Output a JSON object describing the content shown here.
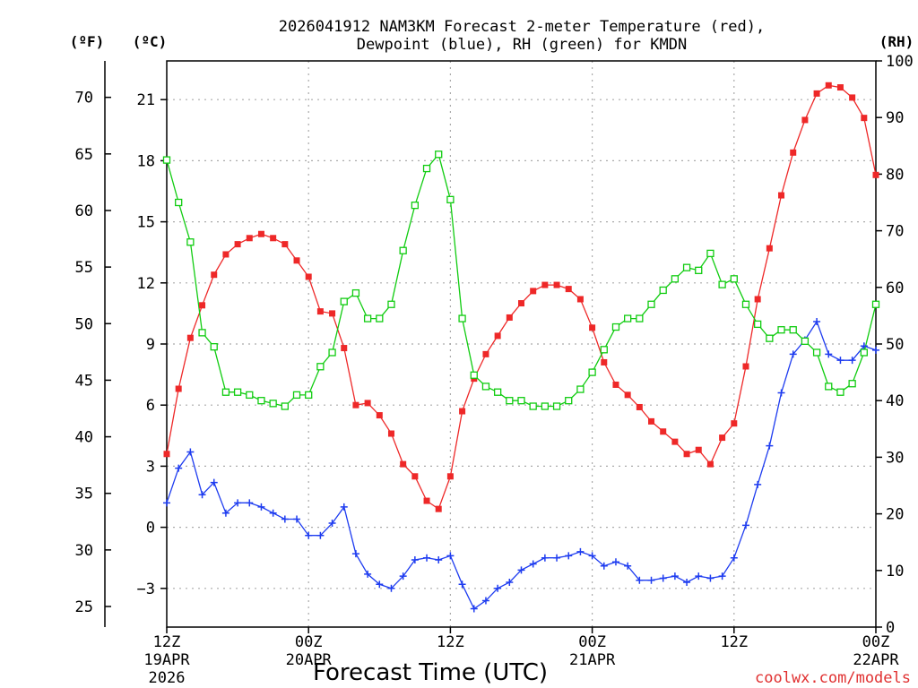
{
  "chart_data": {
    "type": "line",
    "title_line1": "2026041912 NAM3KM Forecast 2-meter Temperature (red),",
    "title_line2": "Dewpoint (blue), RH (green) for KMDN",
    "xlabel": "Forecast Time (UTC)",
    "credit": "coolwx.com/models",
    "units": {
      "fahrenheit": "(ºF)",
      "celsius": "(ºC)",
      "rh": "(RH)"
    },
    "x_hours": [
      0,
      1,
      2,
      3,
      4,
      5,
      6,
      7,
      8,
      9,
      10,
      11,
      12,
      13,
      14,
      15,
      16,
      17,
      18,
      19,
      20,
      21,
      22,
      23,
      24,
      25,
      26,
      27,
      28,
      29,
      30,
      31,
      32,
      33,
      34,
      35,
      36,
      37,
      38,
      39,
      40,
      41,
      42,
      43,
      44,
      45,
      46,
      47,
      48,
      49,
      50,
      51,
      52,
      53,
      54,
      55,
      56,
      57,
      58,
      59,
      60
    ],
    "x_ticks": [
      {
        "hour": 0,
        "label": "12Z",
        "date": "19APR",
        "year": "2026"
      },
      {
        "hour": 12,
        "label": "00Z",
        "date": "20APR",
        "year": ""
      },
      {
        "hour": 24,
        "label": "12Z",
        "date": "",
        "year": ""
      },
      {
        "hour": 36,
        "label": "00Z",
        "date": "21APR",
        "year": ""
      },
      {
        "hour": 48,
        "label": "12Z",
        "date": "",
        "year": ""
      },
      {
        "hour": 60,
        "label": "00Z",
        "date": "22APR",
        "year": ""
      }
    ],
    "celsius_axis": {
      "min": -4.9,
      "max": 22.9,
      "ticks": [
        -3,
        0,
        3,
        6,
        9,
        12,
        15,
        18,
        21
      ]
    },
    "fahrenheit_ticks": [
      25,
      30,
      35,
      40,
      45,
      50,
      55,
      60,
      65,
      70
    ],
    "rh_axis": {
      "min": 0,
      "max": 100,
      "ticks": [
        0,
        10,
        20,
        30,
        40,
        50,
        60,
        70,
        80,
        90,
        100
      ]
    },
    "colors": {
      "temperature": "#ee2828",
      "dewpoint": "#1e3cf0",
      "rh": "#10cc10",
      "grid": "#aaaaaa"
    },
    "series": [
      {
        "name": "Temperature",
        "unit": "C",
        "marker": "filled-square",
        "values": [
          3.6,
          6.8,
          9.3,
          10.9,
          12.4,
          13.4,
          13.9,
          14.2,
          14.4,
          14.2,
          13.9,
          13.1,
          12.3,
          10.6,
          10.5,
          8.8,
          6.0,
          6.1,
          5.5,
          4.6,
          3.1,
          2.5,
          1.3,
          0.9,
          2.5,
          5.7,
          7.3,
          8.5,
          9.4,
          10.3,
          11.0,
          11.6,
          11.9,
          11.9,
          11.7,
          11.2,
          9.8,
          8.1,
          7.0,
          6.5,
          5.9,
          5.2,
          4.7,
          4.2,
          3.6,
          3.8,
          3.1,
          4.4,
          5.1,
          7.9,
          11.2,
          13.7,
          16.3,
          18.4,
          20.0,
          21.3,
          21.7,
          21.6,
          21.1,
          20.1,
          17.3
        ]
      },
      {
        "name": "Dewpoint",
        "unit": "C",
        "marker": "plus",
        "values": [
          1.2,
          2.9,
          3.7,
          1.6,
          2.2,
          0.7,
          1.2,
          1.2,
          1.0,
          0.7,
          0.4,
          0.4,
          -0.4,
          -0.4,
          0.2,
          1.0,
          -1.3,
          -2.3,
          -2.8,
          -3.0,
          -2.4,
          -1.6,
          -1.5,
          -1.6,
          -1.4,
          -2.8,
          -4.0,
          -3.6,
          -3.0,
          -2.7,
          -2.1,
          -1.8,
          -1.5,
          -1.5,
          -1.4,
          -1.2,
          -1.4,
          -1.9,
          -1.7,
          -1.9,
          -2.6,
          -2.6,
          -2.5,
          -2.4,
          -2.7,
          -2.4,
          -2.5,
          -2.4,
          -1.5,
          0.1,
          2.1,
          4.0,
          6.6,
          8.5,
          9.2,
          10.1,
          8.5,
          8.2,
          8.2,
          8.9,
          8.7
        ]
      },
      {
        "name": "RH",
        "unit": "%",
        "marker": "open-square",
        "values": [
          82.5,
          75,
          68,
          52,
          49.5,
          41.5,
          41.5,
          41,
          40,
          39.5,
          39,
          41,
          41,
          46,
          48.5,
          57.5,
          59,
          54.5,
          54.5,
          57,
          66.5,
          74.5,
          81,
          83.5,
          75.5,
          54.5,
          44.5,
          42.5,
          41.5,
          40,
          40,
          39,
          39,
          39,
          40,
          42,
          45,
          49,
          53,
          54.5,
          54.5,
          57,
          59.5,
          61.5,
          63.5,
          63,
          66,
          60.5,
          61.5,
          57,
          53.5,
          51,
          52.5,
          52.5,
          50.5,
          48.5,
          42.5,
          41.5,
          43,
          48.5,
          57
        ]
      }
    ]
  }
}
